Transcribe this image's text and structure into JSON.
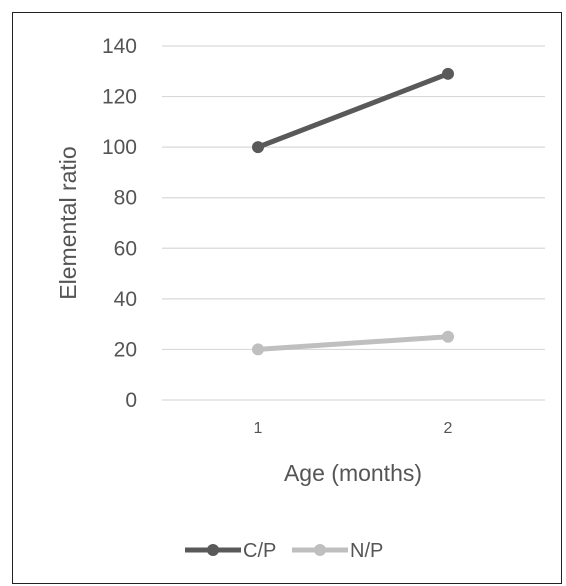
{
  "chart_data": {
    "type": "line",
    "title": "",
    "xlabel": "Age (months)",
    "ylabel": "Elemental ratio",
    "x": [
      "1",
      "2"
    ],
    "ylim": [
      0,
      140
    ],
    "yticks": [
      "0",
      "20",
      "40",
      "60",
      "80",
      "100",
      "120",
      "140"
    ],
    "grid": true,
    "legend_position": "bottom",
    "series": [
      {
        "name": "C/P",
        "values": [
          100,
          129
        ],
        "color": "#595959"
      },
      {
        "name": "N/P",
        "values": [
          20,
          25
        ],
        "color": "#bfbfbf"
      }
    ]
  }
}
